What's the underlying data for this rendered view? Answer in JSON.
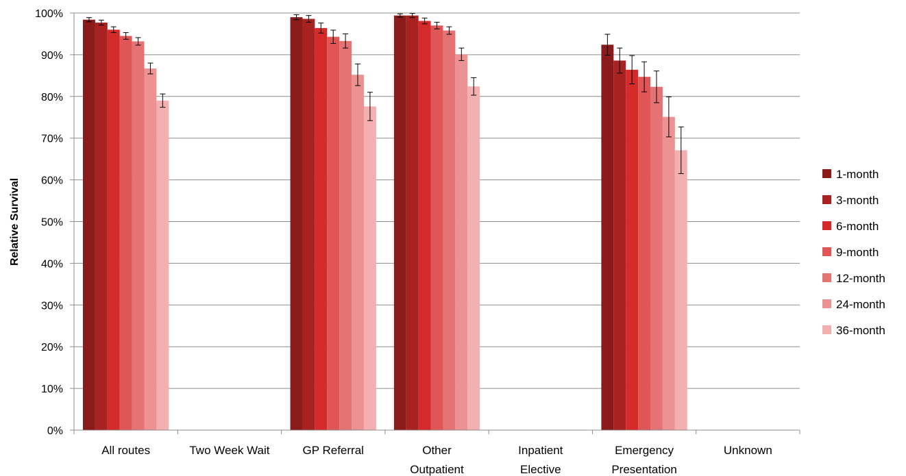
{
  "chart_data": {
    "type": "bar",
    "title": "",
    "xlabel": "",
    "ylabel": "Relative Survival",
    "ylim": [
      0,
      100
    ],
    "y_tick_labels": [
      "0%",
      "10%",
      "20%",
      "30%",
      "40%",
      "50%",
      "60%",
      "70%",
      "80%",
      "90%",
      "100%"
    ],
    "grid": true,
    "legend_position": "right",
    "categories": [
      [
        "All routes"
      ],
      [
        "Two Week Wait"
      ],
      [
        "GP Referral"
      ],
      [
        "Other",
        "Outpatient"
      ],
      [
        "Inpatient",
        "Elective"
      ],
      [
        "Emergency",
        "Presentation"
      ],
      [
        "Unknown"
      ]
    ],
    "series": [
      {
        "name": "1-month",
        "color": "#8B1A1A",
        "values": [
          98.4,
          null,
          99.0,
          99.4,
          null,
          92.4,
          null
        ],
        "error": [
          0.5,
          null,
          0.6,
          0.4,
          null,
          2.5,
          null
        ]
      },
      {
        "name": "3-month",
        "color": "#A82222",
        "values": [
          97.7,
          null,
          98.6,
          99.4,
          null,
          88.6,
          null
        ],
        "error": [
          0.6,
          null,
          0.8,
          0.5,
          null,
          3.0,
          null
        ]
      },
      {
        "name": "6-month",
        "color": "#D42A2A",
        "values": [
          96.0,
          null,
          96.4,
          98.1,
          null,
          86.4,
          null
        ],
        "error": [
          0.7,
          null,
          1.2,
          0.7,
          null,
          3.4,
          null
        ]
      },
      {
        "name": "9-month",
        "color": "#E05555",
        "values": [
          94.5,
          null,
          94.3,
          97.0,
          null,
          84.7,
          null
        ],
        "error": [
          0.8,
          null,
          1.6,
          0.8,
          null,
          3.6,
          null
        ]
      },
      {
        "name": "12-month",
        "color": "#E57373",
        "values": [
          93.2,
          null,
          93.3,
          95.8,
          null,
          82.3,
          null
        ],
        "error": [
          0.9,
          null,
          1.7,
          0.9,
          null,
          3.8,
          null
        ]
      },
      {
        "name": "24-month",
        "color": "#EC9292",
        "values": [
          86.7,
          null,
          85.2,
          90.1,
          null,
          75.1,
          null
        ],
        "error": [
          1.3,
          null,
          2.6,
          1.5,
          null,
          4.8,
          null
        ]
      },
      {
        "name": "36-month",
        "color": "#F2B0B0",
        "values": [
          79.0,
          null,
          77.6,
          82.4,
          null,
          67.1,
          null
        ],
        "error": [
          1.6,
          null,
          3.4,
          2.1,
          null,
          5.6,
          null
        ]
      }
    ],
    "colors": {
      "grid": "#8C8C8C",
      "axis": "#8C8C8C",
      "error_bar": "#000000"
    }
  }
}
